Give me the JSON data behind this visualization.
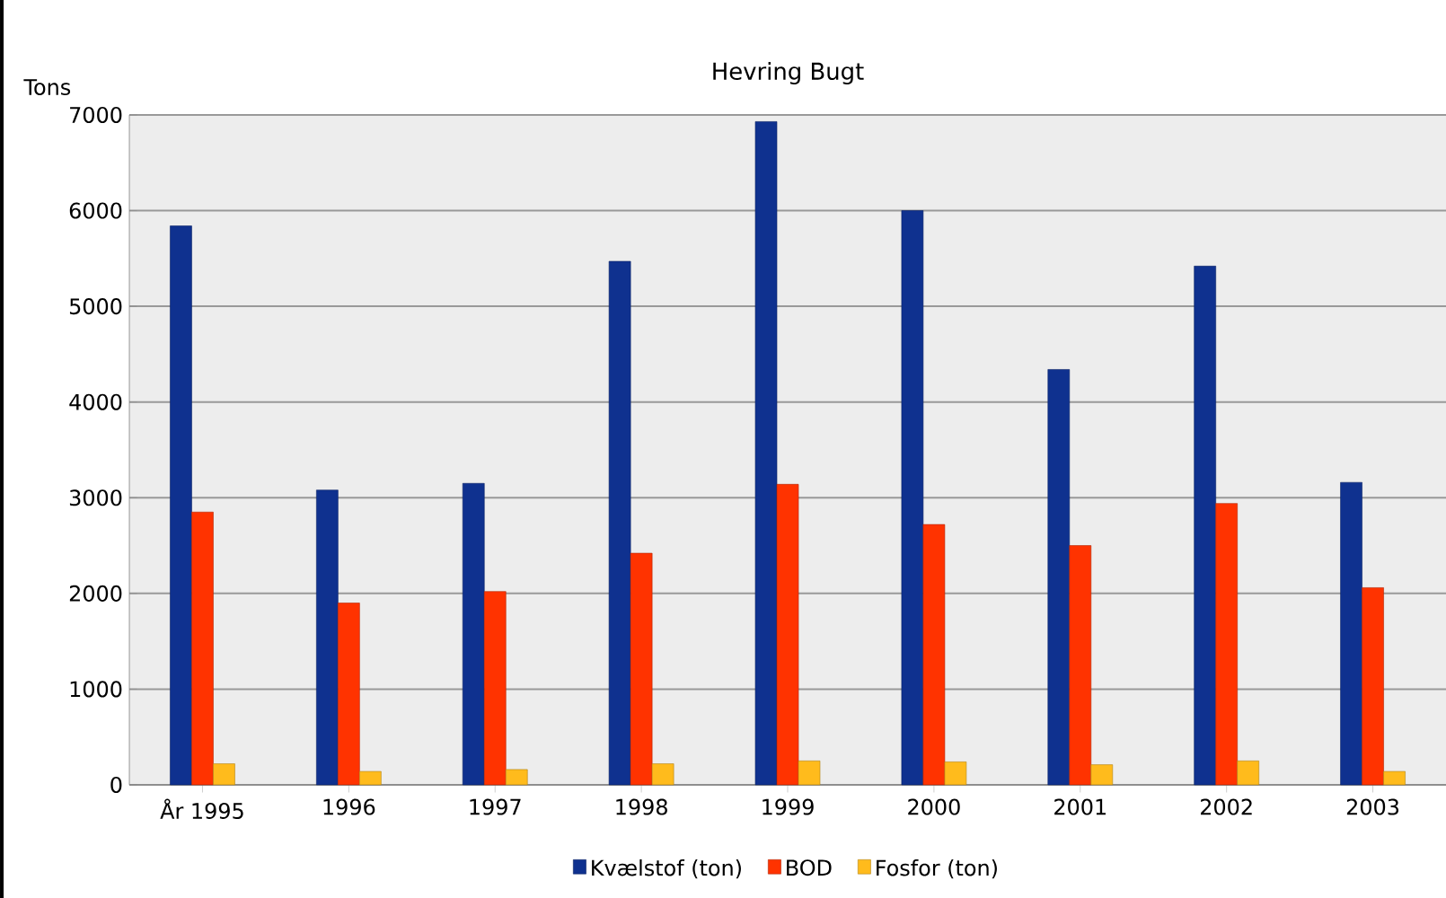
{
  "chart_data": {
    "type": "bar",
    "title": "Hevring Bugt",
    "ylabel": "Tons",
    "categories": [
      "År 1995",
      "1996",
      "1997",
      "1998",
      "1999",
      "2000",
      "2001",
      "2002",
      "2003"
    ],
    "series": [
      {
        "name": "Kvælstof (ton)",
        "color": "#0f318f",
        "values": [
          5840,
          3080,
          3150,
          5470,
          6930,
          6000,
          4340,
          5420,
          3160
        ]
      },
      {
        "name": "BOD",
        "color": "#ff3300",
        "values": [
          2850,
          1900,
          2020,
          2420,
          3140,
          2720,
          2500,
          2940,
          2060
        ]
      },
      {
        "name": "Fosfor (ton)",
        "color": "#ffbb1c",
        "values": [
          220,
          140,
          160,
          220,
          250,
          240,
          210,
          250,
          140
        ]
      }
    ],
    "ylim": [
      0,
      7000
    ],
    "yticks": [
      0,
      1000,
      2000,
      3000,
      4000,
      5000,
      6000,
      7000
    ],
    "grid": "y",
    "legend": "bottom"
  }
}
